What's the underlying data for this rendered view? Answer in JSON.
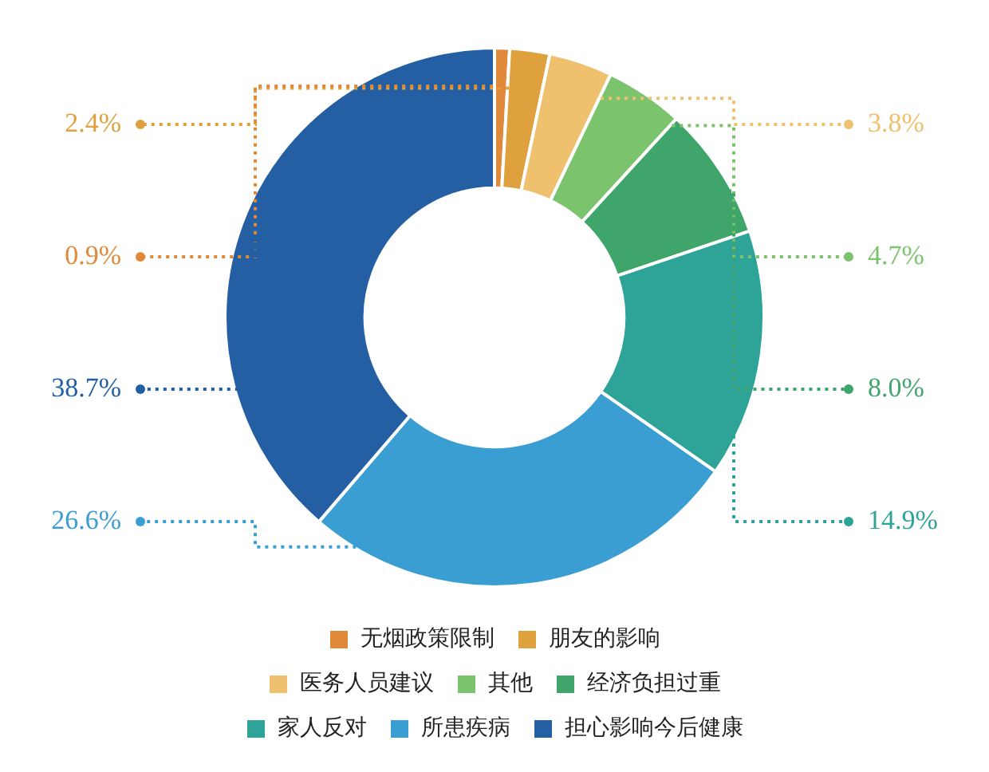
{
  "chart_data": {
    "type": "donut",
    "categories": [
      "无烟政策限制",
      "朋友的影响",
      "医务人员建议",
      "其他",
      "经济负担过重",
      "家人反对",
      "所患疾病",
      "担心影响今后健康"
    ],
    "values": [
      0.9,
      2.4,
      3.8,
      4.7,
      8.0,
      14.9,
      26.6,
      38.7
    ],
    "value_labels": [
      "0.9%",
      "2.4%",
      "3.8%",
      "4.7%",
      "8.0%",
      "14.9%",
      "26.6%",
      "38.7%"
    ],
    "colors": [
      "#e0893a",
      "#dfa03e",
      "#efc06e",
      "#7cc36e",
      "#3fa56a",
      "#2ea398",
      "#3a9ed2",
      "#245fa4"
    ],
    "legend": "bottom"
  }
}
